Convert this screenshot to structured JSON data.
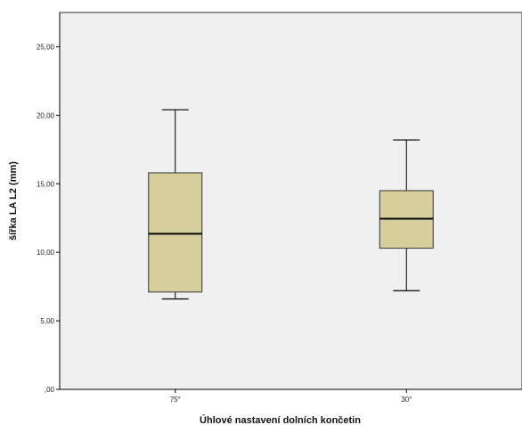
{
  "chart_data": {
    "type": "boxplot",
    "xlabel": "Úhlové nastavení dolních končetin",
    "ylabel": "šířka LA L2 (mm)",
    "ylim": [
      0,
      27.5
    ],
    "yticks": [
      0,
      5,
      10,
      15,
      20,
      25
    ],
    "ytick_labels": [
      ",00",
      "5,00",
      "10,00",
      "15,00",
      "20,00",
      "25,00"
    ],
    "categories": [
      "75°",
      "30°"
    ],
    "boxes": [
      {
        "category": "75°",
        "min": 6.6,
        "q1": 7.1,
        "median": 11.35,
        "q3": 15.8,
        "max": 20.4
      },
      {
        "category": "30°",
        "min": 7.2,
        "q1": 10.3,
        "median": 12.45,
        "q3": 14.5,
        "max": 18.2
      }
    ],
    "grid": false,
    "colors": {
      "box_fill": "#d6cf9c",
      "plot_bg": "#f0f0f0",
      "line": "#000000"
    }
  }
}
